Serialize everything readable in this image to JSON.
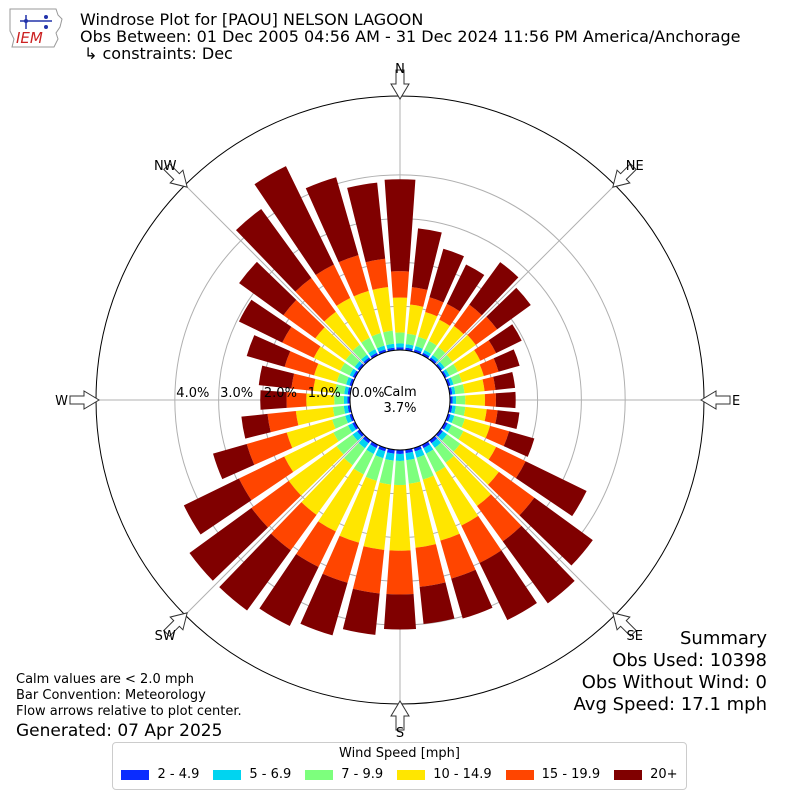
{
  "header": {
    "title": "Windrose Plot for [PAOU] NELSON LAGOON",
    "period": "Obs Between: 01 Dec 2005 04:56 AM - 31 Dec 2024 11:56 PM America/Anchorage",
    "constraints": "↳ constraints: Dec",
    "logo_text": "IEM"
  },
  "summary": {
    "heading": "Summary",
    "obs_used": "Obs Used: 10398",
    "obs_without_wind": "Obs Without Wind: 0",
    "avg_speed": "Avg Speed: 17.1 mph"
  },
  "notes": {
    "calm": "Calm values are < 2.0 mph",
    "convention": "Bar Convention: Meteorology",
    "flow": "Flow arrows relative to plot center.",
    "generated": "Generated: 07 Apr 2025"
  },
  "legend": {
    "title": "Wind Speed [mph]",
    "items": [
      {
        "label": "2 - 4.9",
        "color": "#0a2cff"
      },
      {
        "label": "5 - 6.9",
        "color": "#00d4f0"
      },
      {
        "label": "7 - 9.9",
        "color": "#7dff7d"
      },
      {
        "label": "10 - 14.9",
        "color": "#ffe600"
      },
      {
        "label": "15 - 19.9",
        "color": "#ff4500"
      },
      {
        "label": "20+",
        "color": "#800000"
      }
    ]
  },
  "chart_data": {
    "type": "windrose",
    "calm_label": "Calm",
    "calm_value": "3.7%",
    "radial_tick_labels": [
      "0.0%",
      "1.0%",
      "2.0%",
      "3.0%",
      "4.0%"
    ],
    "radial_ticks": [
      0,
      1,
      2,
      3,
      4
    ],
    "rmax": 5.8,
    "compass_labels": [
      "N",
      "NE",
      "E",
      "SE",
      "S",
      "SW",
      "W",
      "NW"
    ],
    "direction_deg": [
      0,
      10,
      20,
      30,
      40,
      50,
      60,
      70,
      80,
      90,
      100,
      110,
      120,
      130,
      140,
      150,
      160,
      170,
      180,
      190,
      200,
      210,
      220,
      230,
      240,
      250,
      260,
      270,
      280,
      290,
      300,
      310,
      320,
      330,
      340,
      350
    ],
    "series": [
      {
        "name": "2 - 4.9",
        "color": "#0a2cff",
        "cumulative_values": [
          0.06,
          0.06,
          0.06,
          0.06,
          0.06,
          0.05,
          0.05,
          0.06,
          0.06,
          0.06,
          0.06,
          0.06,
          0.07,
          0.07,
          0.08,
          0.08,
          0.08,
          0.08,
          0.09,
          0.09,
          0.08,
          0.08,
          0.08,
          0.07,
          0.07,
          0.06,
          0.06,
          0.06,
          0.06,
          0.06,
          0.06,
          0.06,
          0.06,
          0.06,
          0.06,
          0.06
        ]
      },
      {
        "name": "5 - 6.9",
        "color": "#00d4f0",
        "cumulative_values": [
          0.15,
          0.14,
          0.14,
          0.13,
          0.13,
          0.12,
          0.12,
          0.13,
          0.13,
          0.14,
          0.14,
          0.15,
          0.17,
          0.19,
          0.21,
          0.22,
          0.23,
          0.24,
          0.25,
          0.25,
          0.24,
          0.23,
          0.22,
          0.2,
          0.18,
          0.16,
          0.15,
          0.14,
          0.14,
          0.14,
          0.14,
          0.14,
          0.14,
          0.15,
          0.15,
          0.15
        ]
      },
      {
        "name": "7 - 9.9",
        "color": "#7dff7d",
        "cumulative_values": [
          0.4,
          0.38,
          0.36,
          0.36,
          0.35,
          0.34,
          0.33,
          0.33,
          0.34,
          0.35,
          0.36,
          0.4,
          0.47,
          0.56,
          0.63,
          0.7,
          0.75,
          0.78,
          0.8,
          0.8,
          0.78,
          0.75,
          0.7,
          0.65,
          0.55,
          0.47,
          0.4,
          0.36,
          0.35,
          0.36,
          0.38,
          0.4,
          0.42,
          0.44,
          0.45,
          0.45
        ]
      },
      {
        "name": "10 - 14.9",
        "color": "#ffe600",
        "cumulative_values": [
          1.2,
          1.05,
          0.95,
          0.9,
          0.95,
          1.0,
          0.9,
          0.85,
          0.8,
          0.8,
          0.85,
          1.0,
          1.3,
          1.65,
          1.85,
          2.05,
          2.2,
          2.25,
          2.3,
          2.3,
          2.25,
          2.2,
          2.1,
          2.0,
          1.8,
          1.55,
          1.25,
          1.0,
          0.85,
          0.9,
          1.05,
          1.25,
          1.35,
          1.45,
          1.45,
          1.45
        ]
      },
      {
        "name": "15 - 19.9",
        "color": "#ff4500",
        "cumulative_values": [
          1.8,
          1.45,
          1.3,
          1.3,
          1.55,
          1.6,
          1.3,
          1.2,
          1.05,
          1.05,
          1.1,
          1.45,
          2.05,
          2.65,
          2.85,
          3.0,
          3.1,
          3.15,
          3.3,
          3.3,
          3.2,
          3.1,
          3.1,
          3.05,
          2.95,
          2.5,
          1.9,
          1.45,
          1.35,
          1.6,
          1.85,
          2.15,
          2.3,
          2.3,
          2.3,
          2.1
        ]
      },
      {
        "name": "20+",
        "color": "#800000",
        "cumulative_values": [
          3.9,
          2.8,
          2.45,
          2.3,
          2.75,
          2.55,
          1.95,
          1.7,
          1.5,
          1.5,
          1.6,
          2.05,
          3.6,
          4.3,
          4.6,
          4.45,
          4.05,
          4.0,
          4.1,
          4.25,
          4.45,
          4.6,
          4.8,
          4.8,
          4.35,
          3.3,
          2.5,
          2.05,
          2.1,
          2.5,
          2.95,
          3.4,
          4.25,
          4.8,
          4.15,
          3.85
        ]
      }
    ]
  }
}
